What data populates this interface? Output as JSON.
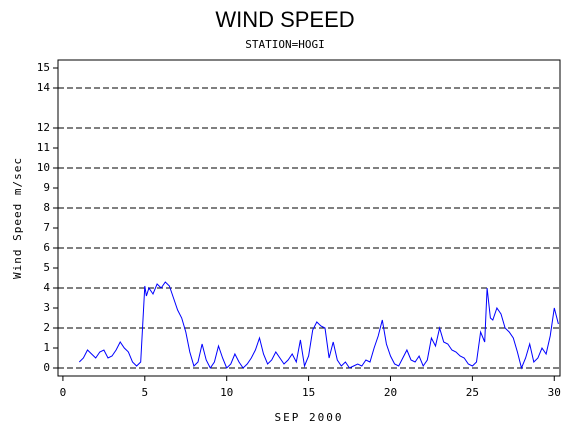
{
  "chart_data": {
    "type": "line",
    "title": "WIND SPEED",
    "subtitle": "STATION=HOGI",
    "y_label": "Wind Speed m/sec",
    "x_label": "SEP 2000",
    "xlim": [
      -0.3,
      30.35
    ],
    "ylim": [
      -0.4,
      15.4
    ],
    "xticks": [
      0,
      5,
      10,
      15,
      20,
      25,
      30
    ],
    "yticks": [
      0,
      1,
      2,
      3,
      4,
      5,
      6,
      7,
      8,
      9,
      10,
      11,
      12,
      14,
      15
    ],
    "grid_lines": [
      0,
      2,
      4,
      6,
      8,
      10,
      12,
      14
    ],
    "series": [
      {
        "name": "Wind Speed",
        "color": "#0000ff",
        "x": [
          1,
          1.25,
          1.5,
          1.75,
          2,
          2.25,
          2.5,
          2.75,
          3,
          3.25,
          3.5,
          3.75,
          4,
          4.25,
          4.5,
          4.75,
          5,
          5.1,
          5.25,
          5.5,
          5.75,
          6,
          6.25,
          6.5,
          6.75,
          7,
          7.25,
          7.5,
          7.75,
          8,
          8.25,
          8.5,
          8.75,
          9,
          9.25,
          9.5,
          9.75,
          10,
          10.25,
          10.5,
          10.75,
          11,
          11.25,
          11.5,
          11.75,
          12,
          12.25,
          12.5,
          12.75,
          13,
          13.25,
          13.5,
          13.75,
          14,
          14.25,
          14.5,
          14.75,
          15,
          15.25,
          15.5,
          15.75,
          16,
          16.25,
          16.5,
          16.75,
          17,
          17.25,
          17.5,
          17.75,
          18,
          18.25,
          18.5,
          18.75,
          19,
          19.25,
          19.5,
          19.75,
          20,
          20.25,
          20.5,
          20.75,
          21,
          21.25,
          21.5,
          21.75,
          22,
          22.25,
          22.5,
          22.75,
          23,
          23.25,
          23.5,
          23.75,
          24,
          24.25,
          24.5,
          24.75,
          25,
          25.25,
          25.5,
          25.75,
          25.9,
          26.1,
          26.25,
          26.5,
          26.75,
          27,
          27.25,
          27.5,
          27.75,
          28,
          28.25,
          28.5,
          28.75,
          29,
          29.25,
          29.5,
          29.75,
          30,
          30.25
        ],
        "values": [
          0.3,
          0.5,
          0.9,
          0.7,
          0.5,
          0.8,
          0.9,
          0.5,
          0.6,
          0.9,
          1.3,
          1.0,
          0.8,
          0.3,
          0.1,
          0.3,
          4.1,
          3.6,
          4.0,
          3.7,
          4.2,
          4.0,
          4.3,
          4.1,
          3.5,
          2.9,
          2.5,
          1.8,
          0.8,
          0.1,
          0.3,
          1.2,
          0.4,
          0.0,
          0.3,
          1.1,
          0.5,
          0.0,
          0.2,
          0.7,
          0.3,
          0.0,
          0.2,
          0.5,
          0.9,
          1.5,
          0.7,
          0.2,
          0.4,
          0.8,
          0.5,
          0.2,
          0.4,
          0.7,
          0.3,
          1.4,
          0.1,
          0.6,
          1.9,
          2.3,
          2.1,
          2.0,
          0.5,
          1.3,
          0.4,
          0.1,
          0.3,
          0.0,
          0.1,
          0.2,
          0.1,
          0.4,
          0.3,
          1.0,
          1.6,
          2.4,
          1.2,
          0.6,
          0.2,
          0.1,
          0.5,
          0.9,
          0.4,
          0.3,
          0.6,
          0.1,
          0.4,
          1.5,
          1.1,
          2.0,
          1.3,
          1.2,
          0.9,
          0.8,
          0.6,
          0.5,
          0.2,
          0.1,
          0.3,
          1.8,
          1.3,
          4.0,
          2.5,
          2.4,
          3.0,
          2.7,
          2.0,
          1.8,
          1.5,
          0.8,
          0.0,
          0.5,
          1.2,
          0.3,
          0.5,
          1.0,
          0.7,
          1.6,
          3.0,
          2.2
        ]
      }
    ]
  }
}
